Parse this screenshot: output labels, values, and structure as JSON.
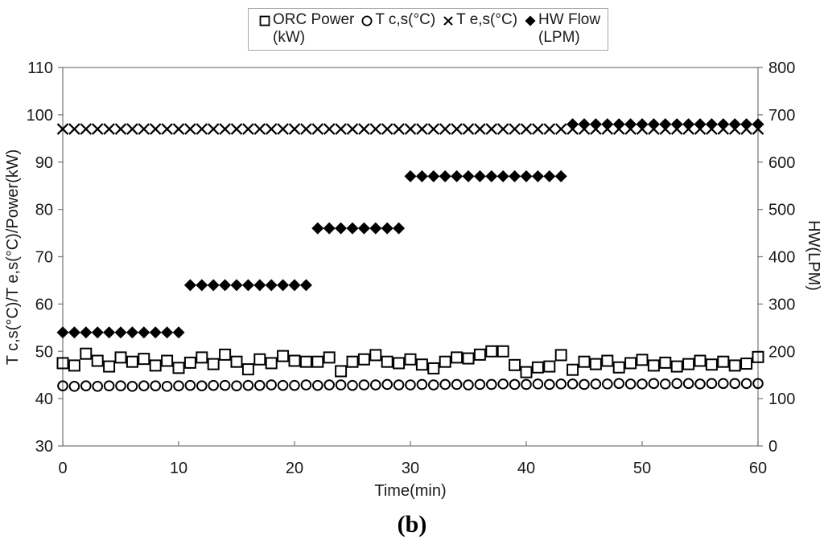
{
  "figure": {
    "caption": "(b)"
  },
  "legend": {
    "items": [
      {
        "icon": "open-square-icon",
        "line1": "ORC Power",
        "line2": "(kW)"
      },
      {
        "icon": "open-circle-icon",
        "line1": "T c,s(°C)",
        "line2": ""
      },
      {
        "icon": "x-mark-icon",
        "line1": "T e,s(°C)",
        "line2": ""
      },
      {
        "icon": "filled-diamond-icon",
        "line1": "HW Flow",
        "line2": "(LPM)"
      }
    ]
  },
  "chart_data": {
    "type": "scatter",
    "xlabel": "Time(min)",
    "x": [
      0,
      1,
      2,
      3,
      4,
      5,
      6,
      7,
      8,
      9,
      10,
      11,
      12,
      13,
      14,
      15,
      16,
      17,
      18,
      19,
      20,
      21,
      22,
      23,
      24,
      25,
      26,
      27,
      28,
      29,
      30,
      31,
      32,
      33,
      34,
      35,
      36,
      37,
      38,
      39,
      40,
      41,
      42,
      43,
      44,
      45,
      46,
      47,
      48,
      49,
      50,
      51,
      52,
      53,
      54,
      55,
      56,
      57,
      58,
      59,
      60
    ],
    "x_ticks": [
      0,
      10,
      20,
      30,
      40,
      50,
      60
    ],
    "x_range": [
      0,
      60
    ],
    "left_axis": {
      "label": "T c,s(°C)/T e,s(°C)/Power(kW)",
      "min": 30,
      "max": 110,
      "ticks": [
        30,
        40,
        50,
        60,
        70,
        80,
        90,
        100,
        110
      ]
    },
    "right_axis": {
      "label": "HW(LPM)",
      "min": 0,
      "max": 800,
      "ticks": [
        0,
        100,
        200,
        300,
        400,
        500,
        600,
        700,
        800
      ]
    },
    "grid": false,
    "legend_position": "top-center",
    "series": [
      {
        "id": "orc-power",
        "name": "ORC Power (kW)",
        "axis": "left",
        "marker": "open-square",
        "values": [
          47.5,
          47.0,
          49.5,
          48.0,
          46.8,
          48.7,
          47.8,
          48.4,
          47.0,
          48.0,
          46.5,
          47.6,
          48.7,
          47.3,
          49.3,
          47.8,
          46.2,
          48.3,
          47.5,
          49.0,
          48.0,
          47.8,
          47.8,
          48.7,
          45.8,
          47.8,
          48.3,
          49.2,
          47.8,
          47.5,
          48.3,
          47.2,
          46.4,
          47.8,
          48.7,
          48.5,
          49.3,
          50.0,
          50.0,
          47.1,
          45.6,
          46.6,
          46.8,
          49.2,
          46.1,
          47.8,
          47.3,
          48.0,
          46.6,
          47.5,
          48.2,
          47.0,
          47.6,
          46.8,
          47.3,
          48.0,
          47.2,
          47.8,
          47.0,
          47.4,
          48.8
        ]
      },
      {
        "id": "tcs",
        "name": "T c,s(°C)",
        "axis": "left",
        "marker": "open-circle",
        "values": [
          42.7,
          42.6,
          42.7,
          42.6,
          42.7,
          42.7,
          42.6,
          42.7,
          42.7,
          42.6,
          42.7,
          42.8,
          42.7,
          42.8,
          42.8,
          42.7,
          42.8,
          42.8,
          42.9,
          42.8,
          42.8,
          42.9,
          42.8,
          42.9,
          42.9,
          42.8,
          42.9,
          42.9,
          43.0,
          42.9,
          42.9,
          43.0,
          42.9,
          43.0,
          43.0,
          42.9,
          43.0,
          43.0,
          43.1,
          43.0,
          43.0,
          43.1,
          43.0,
          43.1,
          43.1,
          43.0,
          43.1,
          43.1,
          43.2,
          43.1,
          43.1,
          43.2,
          43.1,
          43.2,
          43.2,
          43.1,
          43.2,
          43.2,
          43.2,
          43.2,
          43.2
        ]
      },
      {
        "id": "tes",
        "name": "T e,s(°C)",
        "axis": "left",
        "marker": "x-cross",
        "values": [
          97,
          97,
          97,
          97,
          97,
          97,
          97,
          97,
          97,
          97,
          97,
          97,
          97,
          97,
          97,
          97,
          97,
          97,
          97,
          97,
          97,
          97,
          97,
          97,
          97,
          97,
          97,
          97,
          97,
          97,
          97,
          97,
          97,
          97,
          97,
          97,
          97,
          97,
          97,
          97,
          97,
          97,
          97,
          97,
          97,
          97,
          97,
          97,
          97,
          97,
          97,
          97,
          97,
          97,
          97,
          97,
          97,
          97,
          97,
          97,
          97
        ]
      },
      {
        "id": "hw-flow",
        "name": "HW Flow (LPM)",
        "axis": "right",
        "marker": "filled-diamond",
        "values": [
          240,
          240,
          240,
          240,
          240,
          240,
          240,
          240,
          240,
          240,
          240,
          340,
          340,
          340,
          340,
          340,
          340,
          340,
          340,
          340,
          340,
          340,
          460,
          460,
          460,
          460,
          460,
          460,
          460,
          460,
          570,
          570,
          570,
          570,
          570,
          570,
          570,
          570,
          570,
          570,
          570,
          570,
          570,
          570,
          680,
          680,
          680,
          680,
          680,
          680,
          680,
          680,
          680,
          680,
          680,
          680,
          680,
          680,
          680,
          680,
          680
        ]
      }
    ],
    "colors": {
      "marker": "#000000",
      "axis": "#7f7f7f",
      "text": "#1a1a1a"
    }
  }
}
